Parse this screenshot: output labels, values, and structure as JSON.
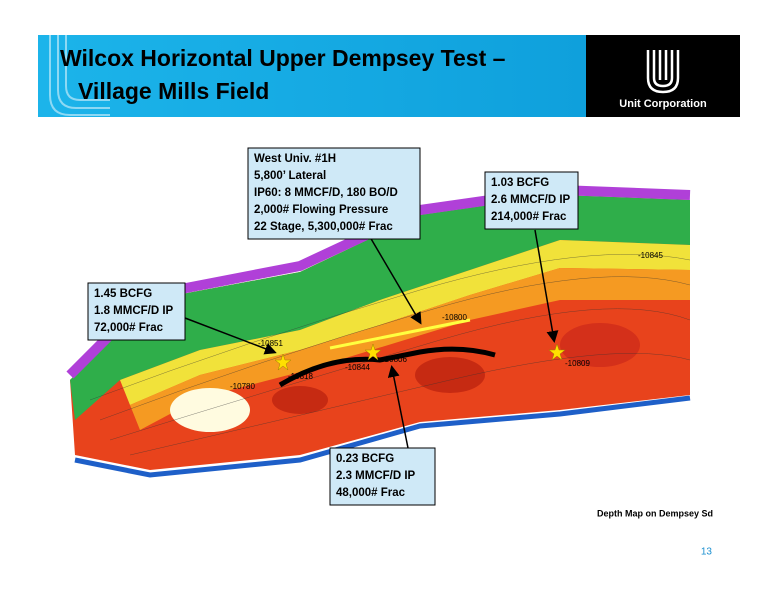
{
  "header": {
    "title_lines": [
      "Wilcox Horizontal Upper Dempsey Test –",
      "Village Mills Field"
    ],
    "logo_text": "Unit Corporation"
  },
  "callouts": [
    {
      "lines": [
        "West Univ. #1H",
        "5,800’ Lateral",
        "IP60:  8 MMCF/D, 180 BO/D",
        "2,000# Flowing Pressure",
        "22 Stage, 5,300,000# Frac"
      ]
    },
    {
      "lines": [
        "1.03 BCFG",
        "2.6 MMCF/D IP",
        "214,000# Frac"
      ]
    },
    {
      "lines": [
        "1.45 BCFG",
        "1.8 MMCF/D IP",
        "72,000# Frac"
      ]
    },
    {
      "lines": [
        "0.23 BCFG",
        "2.3 MMCF/D IP",
        "48,000# Frac"
      ]
    }
  ],
  "map_labels": [
    "-10851",
    "-10818",
    "-10844",
    "-10806",
    "-10800",
    "-10845",
    "-10809",
    "-10780"
  ],
  "caption": "Depth Map on Dempsey Sd",
  "page_number": "13"
}
